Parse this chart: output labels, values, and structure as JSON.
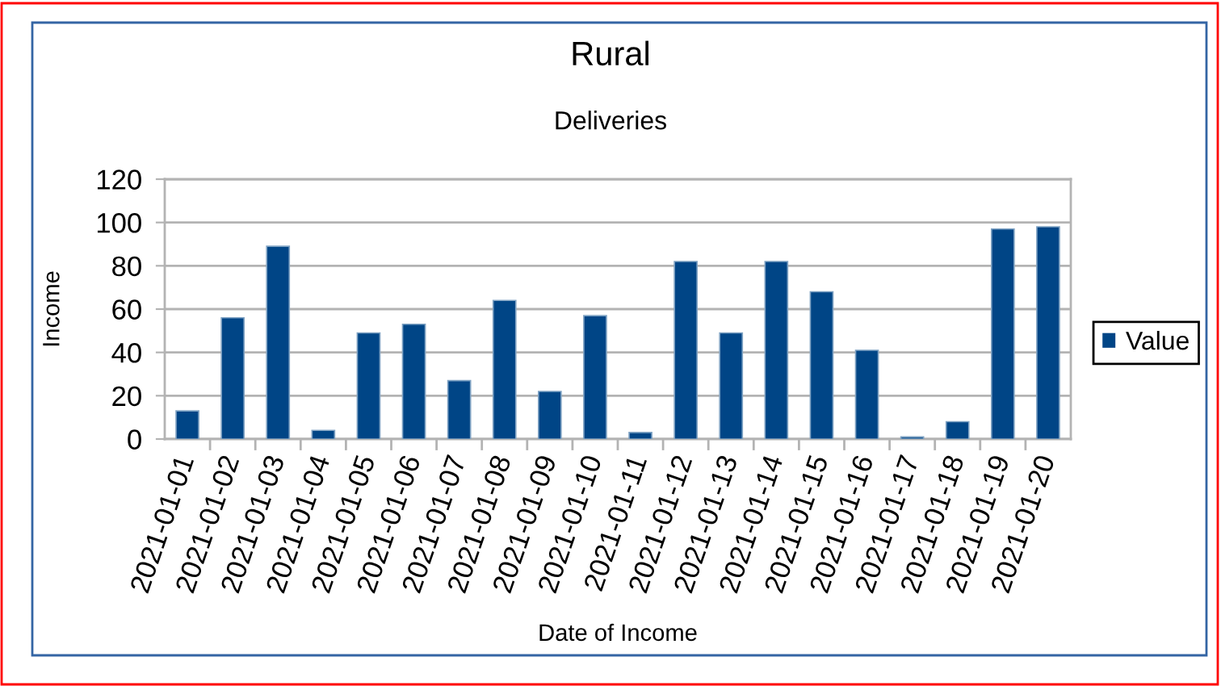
{
  "chart_data": {
    "type": "bar",
    "title": "Rural",
    "subtitle": "Deliveries",
    "xlabel": "Date of Income",
    "ylabel": "Income",
    "categories": [
      "2021-01-01",
      "2021-01-02",
      "2021-01-03",
      "2021-01-04",
      "2021-01-05",
      "2021-01-06",
      "2021-01-07",
      "2021-01-08",
      "2021-01-09",
      "2021-01-10",
      "2021-01-11",
      "2021-01-12",
      "2021-01-13",
      "2021-01-14",
      "2021-01-15",
      "2021-01-16",
      "2021-01-17",
      "2021-01-18",
      "2021-01-19",
      "2021-01-20"
    ],
    "series": [
      {
        "name": "Value",
        "color": "#004586",
        "values": [
          13,
          56,
          89,
          4,
          49,
          53,
          27,
          64,
          22,
          57,
          3,
          82,
          49,
          82,
          68,
          41,
          1,
          8,
          97,
          98
        ]
      }
    ],
    "ylim": [
      0,
      120
    ],
    "yticks": [
      0,
      20,
      40,
      60,
      80,
      100,
      120
    ],
    "grid": "y",
    "legend": "right"
  }
}
